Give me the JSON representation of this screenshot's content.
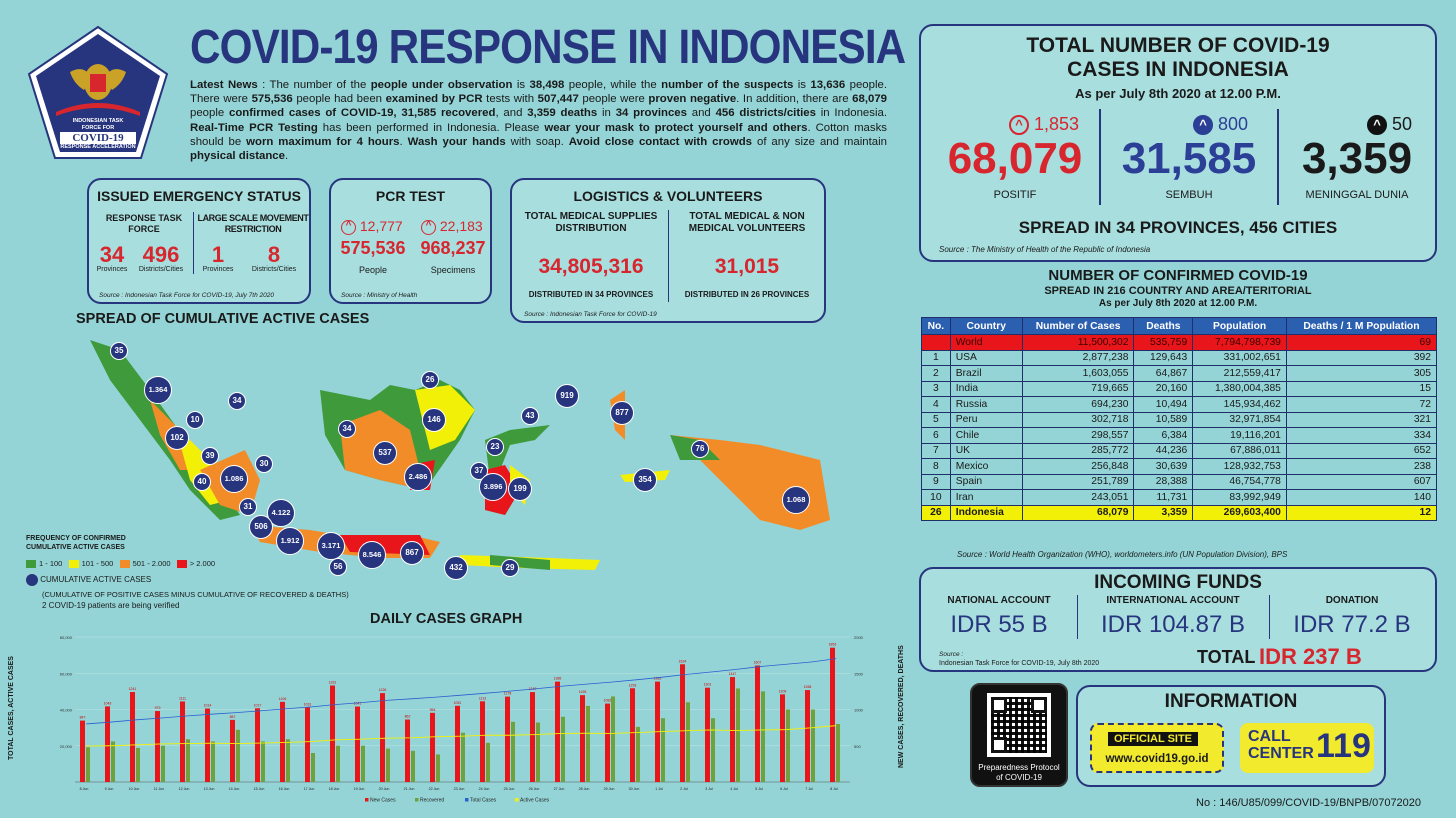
{
  "logo": {
    "line1": "INDONESIAN TASK",
    "line2": "FORCE FOR",
    "line3": "COVID-19",
    "line4": "RESPONSE ACCELERATION"
  },
  "title": "COVID-19 RESPONSE IN INDONESIA",
  "news": {
    "p1": "Latest News",
    "p2": " : The number of the ",
    "p3": "people under observation",
    "p4": " is ",
    "p5": "38,498",
    "p6": " people, while the ",
    "p7": "number of the suspects",
    "p8": " is ",
    "p9": "13,636",
    "p10": " people. There were ",
    "p11": "575,536",
    "p12": " people had been ",
    "p13": "examined by PCR",
    "p14": " tests with ",
    "p15": "507,447",
    "p16": " people were ",
    "p17": "proven negative",
    "p18": ". In addition, there are ",
    "p19": "68,079",
    "p20": " people ",
    "p21": "confirmed cases of COVID-19, 31,585 recovered",
    "p22": ", and ",
    "p23": "3,359 deaths",
    "p24": " in ",
    "p25": "34 provinces",
    "p26": " and ",
    "p27": "456 districts/cities",
    "p28": " in Indonesia. ",
    "p29": "Real-Time PCR Testing",
    "p30": " has been performed in Indonesia. Please ",
    "p31": "wear your mask to protect yourself and others",
    "p32": ". Cotton masks should be ",
    "p33": "worn maximum for 4 hours",
    "p34": ". ",
    "p35": "Wash your hands",
    "p36": " with soap. ",
    "p37": "Avoid close contact with crowds",
    "p38": " of any size and maintain ",
    "p39": "physical distance",
    "p40": "."
  },
  "emergency": {
    "title": "ISSUED EMERGENCY STATUS",
    "col1": "RESPONSE TASK FORCE",
    "col2": "LARGE SCALE MOVEMENT RESTRICTION",
    "v1": "34",
    "l1": "Provinces",
    "v2": "496",
    "l2": "Districts/Cities",
    "v3": "1",
    "l3": "Provinces",
    "v4": "8",
    "l4": "Districts/Cities",
    "source": "Source : Indonesian Task Force for COVID-19, July 7th 2020"
  },
  "pcr": {
    "title": "PCR TEST",
    "inc1": "12,777",
    "inc2": "22,183",
    "v1": "575,536",
    "l1": "People",
    "v2": "968,237",
    "l2": "Specimens",
    "source": "Source : Ministry of Health"
  },
  "logistics": {
    "title": "LOGISTICS & VOLUNTEERS",
    "h1": "TOTAL MEDICAL SUPPLIES DISTRIBUTION",
    "h2": "TOTAL MEDICAL & NON MEDICAL VOLUNTEERS",
    "v1": "34,805,316",
    "v2": "31,015",
    "d1": "DISTRIBUTED IN 34 PROVINCES",
    "d2": "DISTRIBUTED IN 26 PROVINCES",
    "source": "Source : Indonesian Task Force for COVID-19"
  },
  "map": {
    "title": "SPREAD OF CUMULATIVE ACTIVE CASES",
    "legend_title": "FREQUENCY OF CONFIRMED CUMULATIVE ACTIVE CASES",
    "legend": [
      {
        "label": "1 - 100",
        "color": "#3e9a3a"
      },
      {
        "label": "101 - 500",
        "color": "#f3f007"
      },
      {
        "label": "501 - 2.000",
        "color": "#f28c28"
      },
      {
        "label": "> 2.000",
        "color": "#e8161b"
      }
    ],
    "circle_label": "CUMULATIVE ACTIVE CASES",
    "circle_note": "(CUMULATIVE OF POSITIVE CASES MINUS CUMULATIVE OF RECOVERED & DEATHS)",
    "verify_note": "2 COVID-19 patients are being verified",
    "bubbles": [
      "35",
      "1.364",
      "34",
      "10",
      "102",
      "39",
      "30",
      "40",
      "1.086",
      "31",
      "4.122",
      "506",
      "1.912",
      "3.171",
      "56",
      "8.546",
      "867",
      "432",
      "29",
      "26",
      "146",
      "34",
      "537",
      "2.486",
      "23",
      "43",
      "919",
      "877",
      "37",
      "3.896",
      "199",
      "354",
      "76",
      "1.068"
    ]
  },
  "graph": {
    "title": "DAILY CASES GRAPH",
    "ylabel_left": "TOTAL CASES, ACTIVE CASES",
    "ylabel_right": "NEW CASES, RECOVERED, DEATHS",
    "legend": [
      "New Cases",
      "Recovered",
      "Total Cases",
      "Active Cases"
    ],
    "colors": {
      "new": "#e8161b",
      "recovered": "#6fa23c",
      "total": "#2b5fd0",
      "active": "#f3f007"
    }
  },
  "chart_data": {
    "type": "bar",
    "title": "DAILY CASES GRAPH",
    "categories": [
      "8 Jun",
      "9 Jun",
      "10 Jun",
      "11 Jun",
      "12 Jun",
      "13 Jun",
      "14 Jun",
      "15 Jun",
      "16 Jun",
      "17 Jun",
      "18 Jun",
      "19 Jun",
      "20 Jun",
      "21 Jun",
      "22 Jun",
      "23 Jun",
      "24 Jun",
      "25 Jun",
      "26 Jun",
      "27 Jun",
      "28 Jun",
      "29 Jun",
      "30 Jun",
      "1 Jul",
      "2 Jul",
      "3 Jul",
      "4 Jul",
      "5 Jul",
      "6 Jul",
      "7 Jul",
      "8 Jul"
    ],
    "series": [
      {
        "name": "New Cases",
        "values": [
          847,
          1043,
          1241,
          979,
          1111,
          1014,
          857,
          1017,
          1106,
          1031,
          1331,
          1041,
          1226,
          862,
          954,
          1051,
          1113,
          1178,
          1240,
          1385,
          1198,
          1082,
          1293,
          1385,
          1624,
          1301,
          1447,
          1607,
          1209,
          1268,
          1853
        ]
      },
      {
        "name": "Recovered",
        "values": [
          480,
          560,
          470,
          500,
          590,
          560,
          720,
          560,
          590,
          400,
          500,
          500,
          460,
          430,
          380,
          680,
          540,
          830,
          820,
          900,
          1050,
          1180,
          760,
          880,
          1100,
          880,
          1290,
          1250,
          1000,
          1000,
          800
        ]
      },
      {
        "name": "Total Cases",
        "values": [
          32033,
          33076,
          34316,
          35295,
          36406,
          37420,
          38277,
          39294,
          40400,
          41431,
          42762,
          43803,
          45029,
          45891,
          46845,
          47896,
          49009,
          50187,
          51427,
          52812,
          54010,
          55092,
          56385,
          57770,
          59394,
          60695,
          62142,
          63749,
          64958,
          66226,
          68079
        ]
      },
      {
        "name": "Active Cases",
        "values": [
          19800,
          20000,
          20500,
          21000,
          21200,
          21400,
          21200,
          21500,
          21800,
          22300,
          23300,
          23600,
          24200,
          24400,
          25000,
          25300,
          25800,
          25800,
          26200,
          26800,
          26900,
          26800,
          27300,
          27800,
          28300,
          28700,
          28400,
          28700,
          28900,
          29900,
          31100
        ]
      }
    ],
    "ylim_left": [
      0,
      80000
    ],
    "ylim_right": [
      0,
      2000
    ],
    "yticks_left": [
      "80,000",
      "60,000",
      "40,000",
      "20,000"
    ],
    "yticks_right": [
      "2000",
      "1500",
      "1000",
      "500"
    ]
  },
  "total": {
    "title": "TOTAL NUMBER OF COVID-19 CASES IN INDONESIA",
    "asof": "As per July 8th 2020 at 12.00 P.M.",
    "inc_pos": "1,853",
    "inc_rec": "800",
    "inc_death": "50",
    "pos": "68,079",
    "rec": "31,585",
    "death": "3,359",
    "l_pos": "POSITIF",
    "l_rec": "SEMBUH",
    "l_death": "MENINGGAL DUNIA",
    "spread": "SPREAD IN 34 PROVINCES, 456 CITIES",
    "source": "Source : The Ministry of Health of the Republic of Indonesia"
  },
  "world": {
    "title": "NUMBER OF CONFIRMED COVID-19",
    "sub": "SPREAD IN 216 COUNTRY AND AREA/TERITORIAL",
    "asof": "As per July 8th 2020 at 12.00 P.M.",
    "headers": [
      "No.",
      "Country",
      "Number of Cases",
      "Deaths",
      "Population",
      "Deaths / 1 M Population"
    ],
    "rows": [
      [
        "",
        "World",
        "11,500,302",
        "535,759",
        "7,794,798,739",
        "69"
      ],
      [
        "1",
        "USA",
        "2,877,238",
        "129,643",
        "331,002,651",
        "392"
      ],
      [
        "2",
        "Brazil",
        "1,603,055",
        "64,867",
        "212,559,417",
        "305"
      ],
      [
        "3",
        "India",
        "719,665",
        "20,160",
        "1,380,004,385",
        "15"
      ],
      [
        "4",
        "Russia",
        "694,230",
        "10,494",
        "145,934,462",
        "72"
      ],
      [
        "5",
        "Peru",
        "302,718",
        "10,589",
        "32,971,854",
        "321"
      ],
      [
        "6",
        "Chile",
        "298,557",
        "6,384",
        "19,116,201",
        "334"
      ],
      [
        "7",
        "UK",
        "285,772",
        "44,236",
        "67,886,011",
        "652"
      ],
      [
        "8",
        "Mexico",
        "256,848",
        "30,639",
        "128,932,753",
        "238"
      ],
      [
        "9",
        "Spain",
        "251,789",
        "28,388",
        "46,754,778",
        "607"
      ],
      [
        "10",
        "Iran",
        "243,051",
        "11,731",
        "83,992,949",
        "140"
      ],
      [
        "26",
        "Indonesia",
        "68,079",
        "3,359",
        "269,603,400",
        "12"
      ]
    ],
    "source": "Source : World Health Organization (WHO), worldometers.info (UN Population Division), BPS"
  },
  "funds": {
    "title": "INCOMING FUNDS",
    "h1": "NATIONAL ACCOUNT",
    "h2": "INTERNATIONAL ACCOUNT",
    "h3": "DONATION",
    "v1": "IDR 55 B",
    "v2": "IDR 104.87 B",
    "v3": "IDR 77.2 B",
    "source1": "Source :",
    "source2": "Indonesian Task Force for COVID-19, July 8th 2020",
    "total_label": "TOTAL",
    "total": "IDR 237 B"
  },
  "qr": {
    "caption": "Preparedness Protocol of COVID-19"
  },
  "info": {
    "title": "INFORMATION",
    "site_label": "OFFICIAL SITE",
    "site": "www.covid19.go.id",
    "call1": "CALL",
    "call2": "CENTER",
    "call_num": "119"
  },
  "footer": "No : 146/U85/099/COVID-19/BNPB/07072020"
}
